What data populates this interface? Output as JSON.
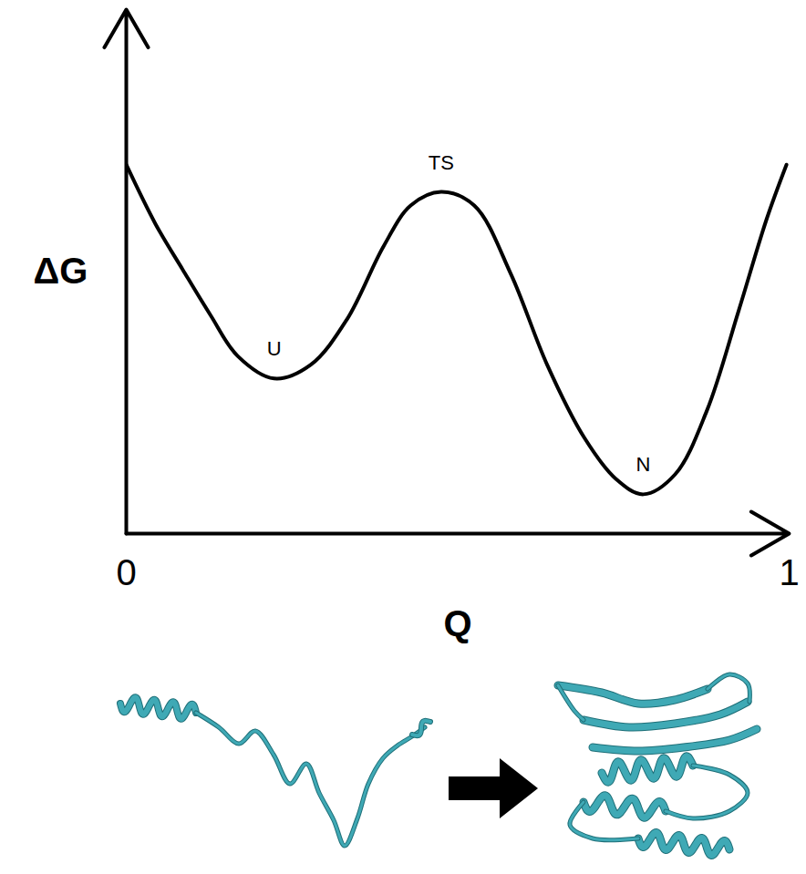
{
  "chart_data": {
    "type": "line",
    "x": [
      0,
      0.044,
      0.085,
      0.127,
      0.168,
      0.223,
      0.278,
      0.333,
      0.388,
      0.429,
      0.475,
      0.525,
      0.58,
      0.635,
      0.691,
      0.739,
      0.78,
      0.828,
      0.876,
      0.924,
      0.966,
      0.996
    ],
    "values": [
      0.704,
      0.591,
      0.504,
      0.417,
      0.339,
      0.296,
      0.322,
      0.409,
      0.548,
      0.626,
      0.652,
      0.626,
      0.496,
      0.322,
      0.183,
      0.104,
      0.075,
      0.113,
      0.235,
      0.426,
      0.6,
      0.704
    ],
    "color": "#000000",
    "x_label": "Q",
    "y_label": "ΔG",
    "xlim": [
      0,
      1
    ],
    "xticks": [
      0,
      1
    ],
    "ylim": [
      0,
      1
    ],
    "tick_labels": "x",
    "annotations": [
      {
        "text": "U",
        "x": 0.223,
        "y": 0.296
      },
      {
        "text": "TS",
        "x": 0.475,
        "y": 0.652
      },
      {
        "text": "N",
        "x": 0.78,
        "y": 0.075
      }
    ]
  }
}
